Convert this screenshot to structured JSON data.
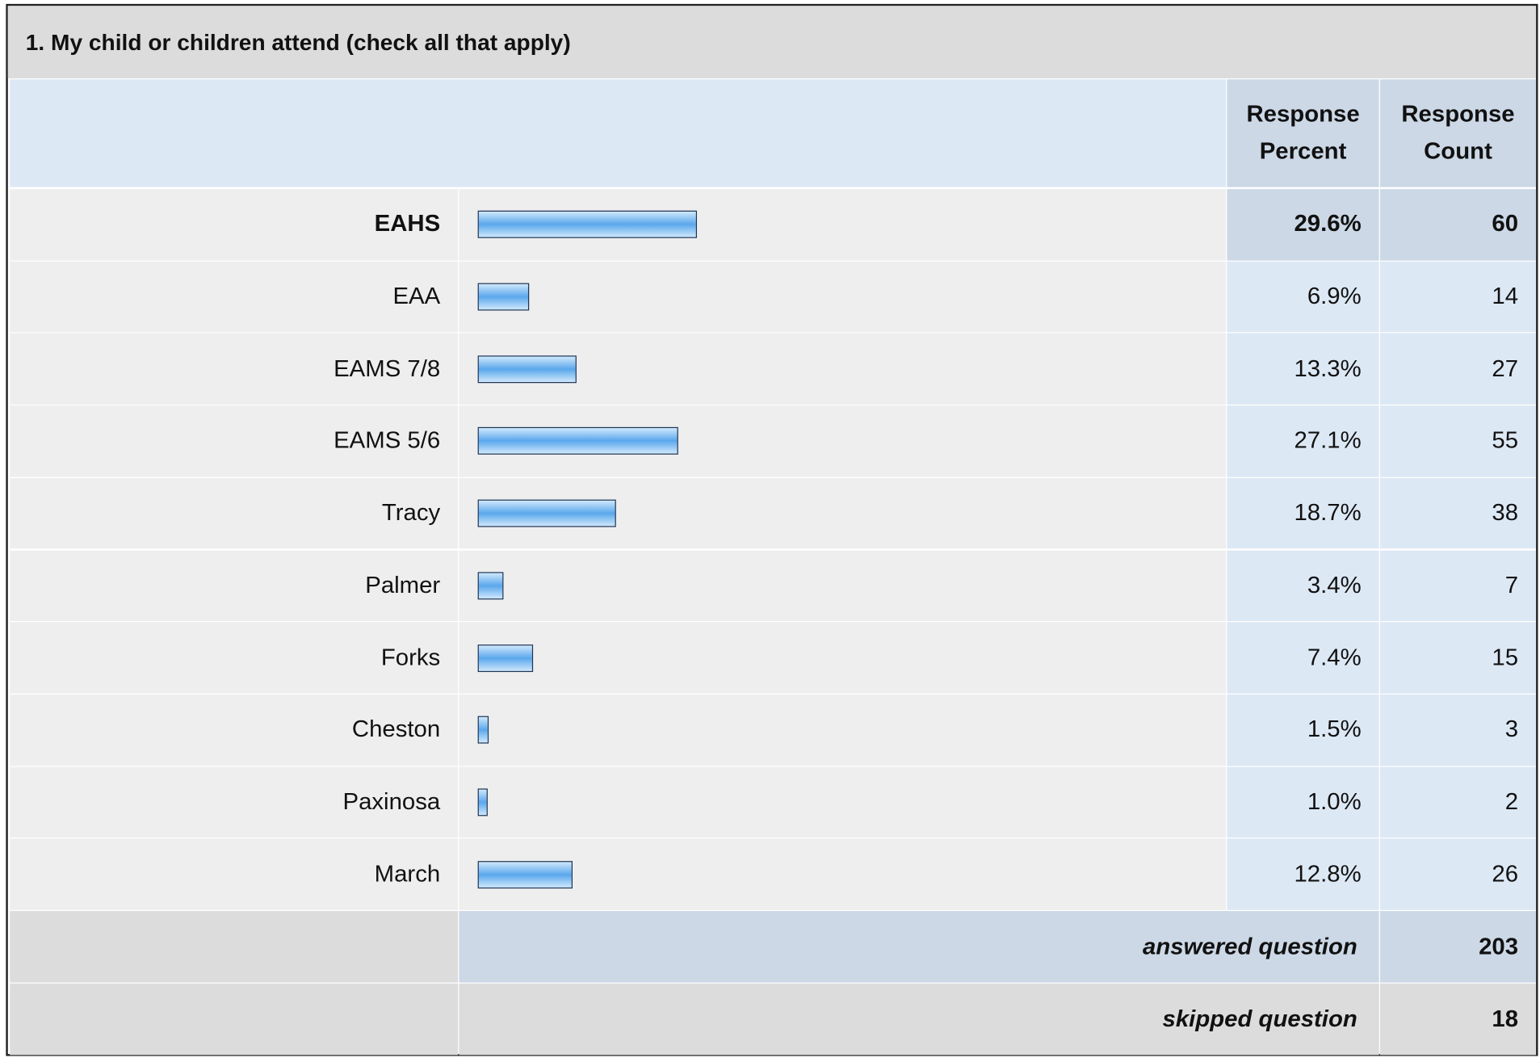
{
  "chart_data": {
    "type": "bar",
    "title": "1. My child or children attend (check all that apply)",
    "columns": [
      "Response Percent",
      "Response Count"
    ],
    "categories": [
      "EAHS",
      "EAA",
      "EAMS 7/8",
      "EAMS 5/6",
      "Tracy",
      "Palmer",
      "Forks",
      "Cheston",
      "Paxinosa",
      "March"
    ],
    "values": [
      29.6,
      6.9,
      13.3,
      27.1,
      18.7,
      3.4,
      7.4,
      1.5,
      1.0,
      12.8
    ],
    "value_labels": [
      "29.6%",
      "6.9%",
      "13.3%",
      "27.1%",
      "18.7%",
      "3.4%",
      "7.4%",
      "1.5%",
      "1.0%",
      "12.8%"
    ],
    "counts": [
      60,
      14,
      27,
      55,
      38,
      7,
      15,
      3,
      2,
      26
    ],
    "answered": {
      "label": "answered question",
      "value": 203
    },
    "skipped": {
      "label": "skipped question",
      "value": 18
    },
    "color": "#5aa7ec"
  }
}
